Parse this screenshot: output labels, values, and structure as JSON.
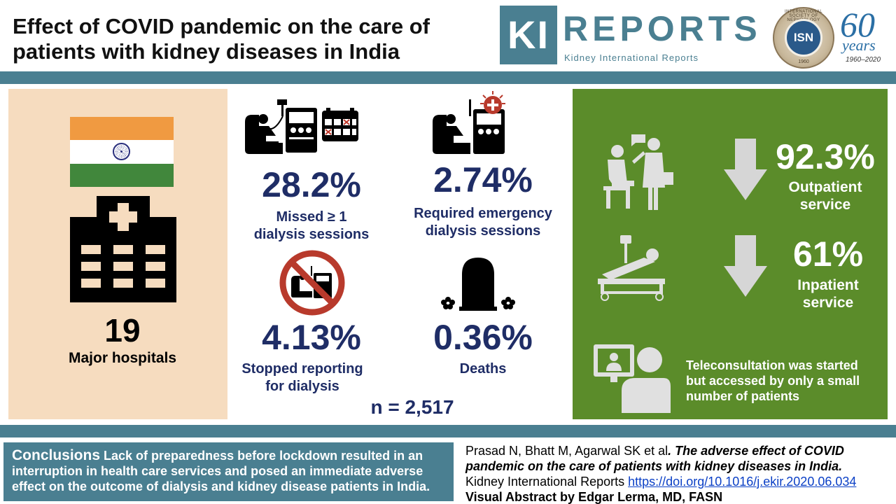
{
  "title": "Effect of COVID pandemic on the care of patients with kidney diseases in India",
  "logos": {
    "ki_mark": "KI",
    "ki_reports": "REPORTS",
    "ki_subtitle": "Kidney International Reports",
    "isn_initials": "ISN",
    "isn_ring_text": "INTERNATIONAL SOCIETY OF NEPHROLOGY",
    "isn_founded": "1960",
    "anniversary_number": "60",
    "anniversary_word": "years",
    "anniversary_range": "1960–2020"
  },
  "left_panel": {
    "number": "19",
    "label": "Major hospitals",
    "flag_colors": {
      "saffron": "#f09a41",
      "white": "#ffffff",
      "green": "#41873c",
      "chakra": "#2a2f7d"
    }
  },
  "stats": [
    {
      "value": "28.2%",
      "label_line1": "Missed ≥ 1",
      "label_line2": "dialysis sessions",
      "icon": "dialysis-calendar-icon"
    },
    {
      "value": "2.74%",
      "label_line1": "Required emergency",
      "label_line2": "dialysis sessions",
      "icon": "emergency-dialysis-icon"
    },
    {
      "value": "4.13%",
      "label_line1": "Stopped reporting",
      "label_line2": "for dialysis",
      "icon": "no-dialysis-icon"
    },
    {
      "value": "0.36%",
      "label_line1": "Deaths",
      "label_line2": "",
      "icon": "gravestone-icon"
    }
  ],
  "n_total": "n = 2,517",
  "right_panel": {
    "outpatient_value": "92.3%",
    "outpatient_label_line1": "Outpatient",
    "outpatient_label_line2": "service",
    "inpatient_value": "61%",
    "inpatient_label_line1": "Inpatient",
    "inpatient_label_line2": "service",
    "tele_text": "Teleconsultation was started but accessed by only a small number of patients"
  },
  "conclusions": {
    "heading": "Conclusions",
    "text": "Lack of preparedness before lockdown resulted in an interruption in health care services and posed an immediate adverse effect on the outcome of dialysis and kidney disease patients in India."
  },
  "citation": {
    "authors": "Prasad N, Bhatt M, Agarwal SK et al",
    "article_title": ". The adverse effect of COVID pandemic on the care of patients with kidney diseases in India.",
    "journal": "Kidney International Reports ",
    "doi": "https://doi.org/10.1016/j.ekir.2020.06.034",
    "credit": "Visual Abstract by Edgar Lerma, MD, FASN"
  },
  "colors": {
    "teal": "#4a7f91",
    "peach": "#f6dcbf",
    "green": "#5b8c2a",
    "navy_text": "#1f2d66",
    "arrow_grey": "#d6d6d6",
    "prohibit_red": "#b83a2c"
  }
}
